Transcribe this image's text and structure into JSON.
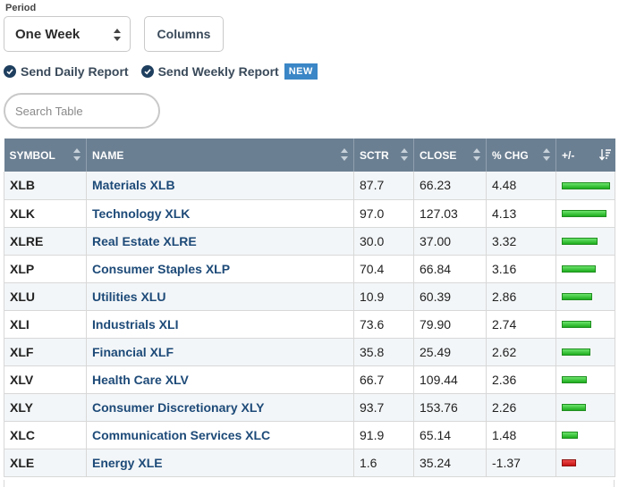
{
  "period": {
    "label": "Period",
    "selected": "One Week"
  },
  "toolbar": {
    "columns_label": "Columns"
  },
  "reports": {
    "daily_label": "Send Daily Report",
    "weekly_label": "Send Weekly Report",
    "new_badge": "NEW"
  },
  "search": {
    "placeholder": "Search Table"
  },
  "table": {
    "headers": [
      "SYMBOL",
      "NAME",
      "SCTR",
      "CLOSE",
      "% CHG",
      "+/-"
    ],
    "bar_max_pct": 4.48,
    "colors": {
      "positive": "#1eae1e",
      "negative": "#c41212",
      "header_bg": "#6b7f92"
    },
    "rows": [
      {
        "symbol": "XLB",
        "name": "Materials XLB",
        "sctr": "87.7",
        "close": "66.23",
        "chg": "4.48",
        "bar": 4.48
      },
      {
        "symbol": "XLK",
        "name": "Technology XLK",
        "sctr": "97.0",
        "close": "127.03",
        "chg": "4.13",
        "bar": 4.13
      },
      {
        "symbol": "XLRE",
        "name": "Real Estate XLRE",
        "sctr": "30.0",
        "close": "37.00",
        "chg": "3.32",
        "bar": 3.32
      },
      {
        "symbol": "XLP",
        "name": "Consumer Staples XLP",
        "sctr": "70.4",
        "close": "66.84",
        "chg": "3.16",
        "bar": 3.16
      },
      {
        "symbol": "XLU",
        "name": "Utilities XLU",
        "sctr": "10.9",
        "close": "60.39",
        "chg": "2.86",
        "bar": 2.86
      },
      {
        "symbol": "XLI",
        "name": "Industrials XLI",
        "sctr": "73.6",
        "close": "79.90",
        "chg": "2.74",
        "bar": 2.74
      },
      {
        "symbol": "XLF",
        "name": "Financial XLF",
        "sctr": "35.8",
        "close": "25.49",
        "chg": "2.62",
        "bar": 2.62
      },
      {
        "symbol": "XLV",
        "name": "Health Care XLV",
        "sctr": "66.7",
        "close": "109.44",
        "chg": "2.36",
        "bar": 2.36
      },
      {
        "symbol": "XLY",
        "name": "Consumer Discretionary XLY",
        "sctr": "93.7",
        "close": "153.76",
        "chg": "2.26",
        "bar": 2.26
      },
      {
        "symbol": "XLC",
        "name": "Communication Services XLC",
        "sctr": "91.9",
        "close": "65.14",
        "chg": "1.48",
        "bar": 1.48
      },
      {
        "symbol": "XLE",
        "name": "Energy XLE",
        "sctr": "1.6",
        "close": "35.24",
        "chg": "-1.37",
        "bar": -1.37
      }
    ]
  }
}
